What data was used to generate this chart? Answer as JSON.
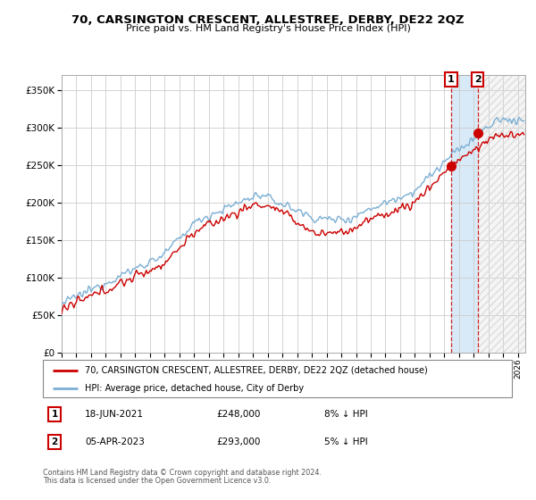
{
  "title": "70, CARSINGTON CRESCENT, ALLESTREE, DERBY, DE22 2QZ",
  "subtitle": "Price paid vs. HM Land Registry's House Price Index (HPI)",
  "legend_line1": "70, CARSINGTON CRESCENT, ALLESTREE, DERBY, DE22 2QZ (detached house)",
  "legend_line2": "HPI: Average price, detached house, City of Derby",
  "sale1_date": "18-JUN-2021",
  "sale1_price": 248000,
  "sale1_pct": "8% ↓ HPI",
  "sale2_date": "05-APR-2023",
  "sale2_price": 293000,
  "sale2_pct": "5% ↓ HPI",
  "footnote1": "Contains HM Land Registry data © Crown copyright and database right 2024.",
  "footnote2": "This data is licensed under the Open Government Licence v3.0.",
  "hpi_color": "#7bafd4",
  "price_color": "#cc0000",
  "marker_color": "#cc0000",
  "background_color": "#ffffff",
  "grid_color": "#cccccc",
  "highlight_color": "#d8eaf7",
  "ylim": [
    0,
    370000
  ],
  "xlim_start": 1995.0,
  "xlim_end": 2026.5,
  "sale1_x": 2021.46,
  "sale2_x": 2023.27
}
